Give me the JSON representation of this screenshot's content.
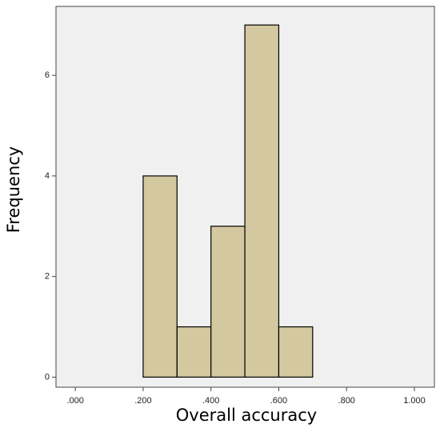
{
  "chart_data": {
    "type": "histogram",
    "x_label": "Overall accuracy",
    "y_label": "Frequency",
    "bins": [
      0.2,
      0.3,
      0.4,
      0.5,
      0.6,
      0.7
    ],
    "values": [
      4,
      1,
      3,
      7,
      1
    ],
    "color": "#d3c89f",
    "xlim": [
      -0.057,
      1.059
    ],
    "xticks": [
      {
        "value": 0,
        "label": ".000"
      },
      {
        "value": 0.2,
        "label": ".200"
      },
      {
        "value": 0.4,
        "label": ".400"
      },
      {
        "value": 0.6,
        "label": ".600"
      },
      {
        "value": 0.8,
        "label": ".800"
      },
      {
        "value": 1,
        "label": "1.000"
      }
    ],
    "ylim": [
      -0.2,
      7.37
    ],
    "yticks": [
      0,
      2,
      4,
      6
    ]
  }
}
